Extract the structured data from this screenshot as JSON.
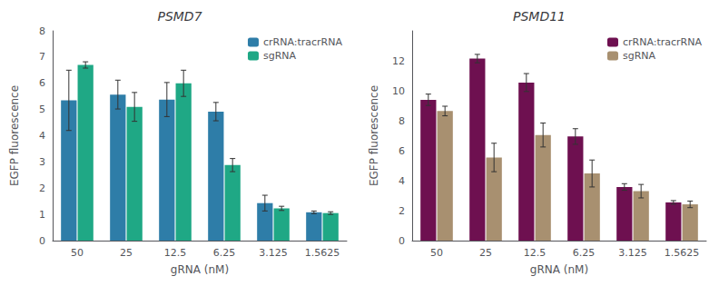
{
  "chart_data": [
    {
      "type": "bar",
      "title": "PSMD7",
      "categories": [
        "50",
        "25",
        "12.5",
        "6.25",
        "3.125",
        "1.5625"
      ],
      "series": [
        {
          "name": "crRNA:tracrRNA",
          "color": "#2e7da8",
          "values": [
            5.35,
            5.57,
            5.38,
            4.92,
            1.43,
            1.08
          ],
          "errors": [
            1.15,
            0.55,
            0.65,
            0.35,
            0.3,
            0.05
          ]
        },
        {
          "name": "sgRNA",
          "color": "#1fa885",
          "values": [
            6.7,
            5.1,
            6.0,
            2.88,
            1.23,
            1.05
          ],
          "errors": [
            0.12,
            0.55,
            0.5,
            0.25,
            0.08,
            0.05
          ]
        }
      ],
      "xlabel": "gRNA (nM)",
      "ylabel": "EGFP fluorescence",
      "ylim": [
        0,
        8
      ],
      "yticks": [
        0,
        1,
        2,
        3,
        4,
        5,
        6,
        7,
        8
      ],
      "grid": false,
      "legend": "upper right"
    },
    {
      "type": "bar",
      "title": "PSMD11",
      "categories": [
        "50",
        "25",
        "12.5",
        "6.25",
        "3.125",
        "1.5625"
      ],
      "series": [
        {
          "name": "crRNA:tracrRNA",
          "color": "#6e1050",
          "values": [
            9.4,
            12.15,
            10.55,
            6.95,
            3.58,
            2.55
          ],
          "errors": [
            0.38,
            0.28,
            0.6,
            0.52,
            0.22,
            0.12
          ]
        },
        {
          "name": "sgRNA",
          "color": "#a89070",
          "values": [
            8.65,
            5.55,
            7.05,
            4.48,
            3.3,
            2.42
          ],
          "errors": [
            0.32,
            0.95,
            0.8,
            0.9,
            0.45,
            0.22
          ]
        }
      ],
      "xlabel": "gRNA (nM)",
      "ylabel": "EGFP fluorescence",
      "ylim": [
        0,
        14
      ],
      "yticks": [
        0,
        2,
        4,
        6,
        8,
        10,
        12
      ],
      "grid": false,
      "legend": "upper right"
    }
  ]
}
